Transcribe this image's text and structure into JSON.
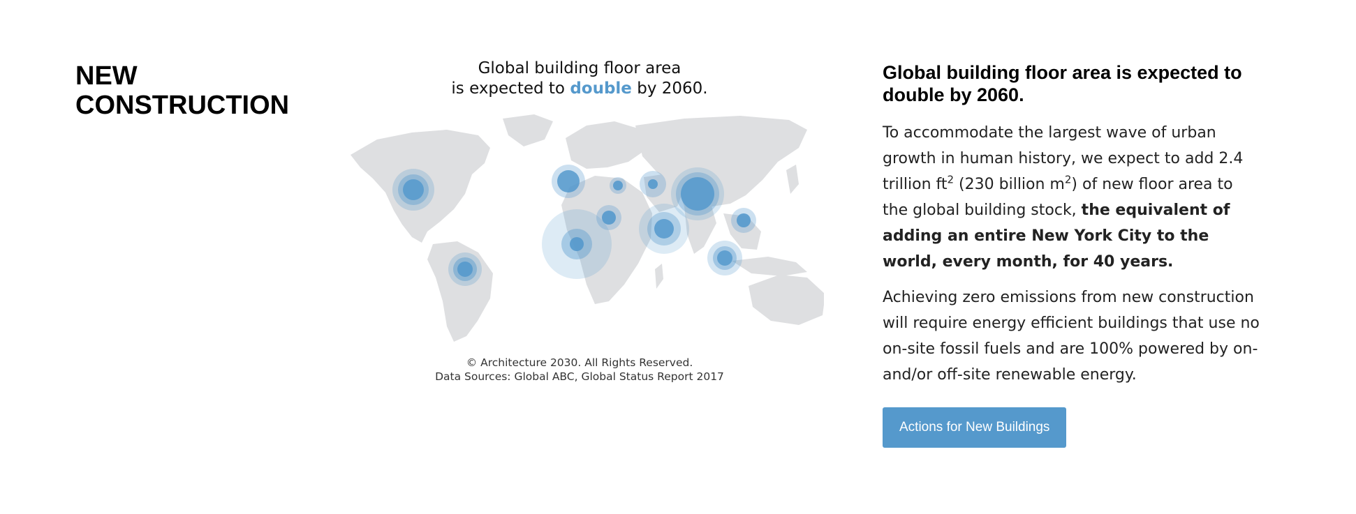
{
  "section": {
    "title": "NEW CONSTRUCTION"
  },
  "map": {
    "headline_line1": "Global building floor area",
    "headline_prefix": "is expected to ",
    "headline_accent": "double",
    "headline_suffix": " by 2060.",
    "credit_line1": "© Architecture 2030. All Rights Reserved.",
    "credit_line2": "Data Sources: Global ABC, Global Status Report 2017",
    "land_color": "#dedfe1",
    "bubble_color": "#5599cc"
  },
  "info": {
    "heading": "Global building floor area is expected to double by 2060.",
    "p1_a": "To accommodate the largest wave of urban growth in human history, we expect to add 2.4 trillion ft",
    "p1_sup1": "2",
    "p1_b": " (230 billion m",
    "p1_sup2": "2",
    "p1_c": ") of new floor area to the global building stock, ",
    "p1_bold": "the equivalent of adding an entire New York City to the world, every month, for 40 years.",
    "p2": "Achieving zero emissions from new construction will require energy efficient buildings that use no on-site fossil fuels and are 100% powered by on- and/or off-site renewable energy."
  },
  "cta": {
    "label": "Actions for New Buildings"
  }
}
